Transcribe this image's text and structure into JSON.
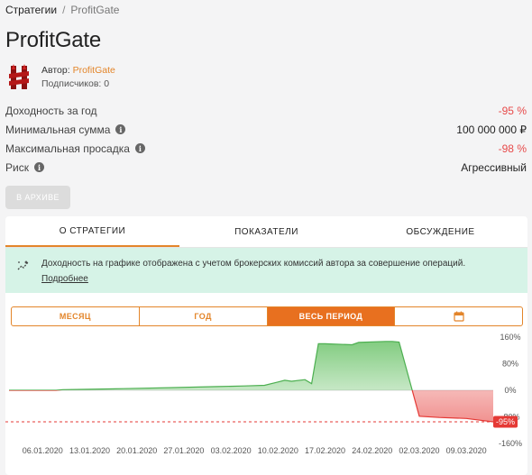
{
  "breadcrumb": {
    "root": "Стратегии",
    "separator": "/",
    "current": "ProfitGate"
  },
  "title": "ProfitGate",
  "author": {
    "label": "Автор:",
    "name": "ProfitGate",
    "subscribers": "Подписчиков: 0"
  },
  "stats": [
    {
      "label": "Доходность за год",
      "value": "-95 %",
      "info": false,
      "negative": true
    },
    {
      "label": "Минимальная сумма",
      "value": "100 000 000 ₽",
      "info": true,
      "negative": false
    },
    {
      "label": "Максимальная просадка",
      "value": "-98 %",
      "info": true,
      "negative": true
    },
    {
      "label": "Риск",
      "value": "Агрессивный",
      "info": true,
      "negative": false
    }
  ],
  "archive_button": "В АРХИВЕ",
  "tabs": [
    {
      "label": "О СТРАТЕГИИ",
      "active": true
    },
    {
      "label": "ПОКАЗАТЕЛИ",
      "active": false
    },
    {
      "label": "ОБСУЖДЕНИЕ",
      "active": false
    }
  ],
  "notice": {
    "text": "Доходность на графике отображена с учетом брокерских комиссий автора за совершение операций.",
    "link": "Подробнее"
  },
  "periods": [
    {
      "label": "МЕСЯЦ",
      "active": false
    },
    {
      "label": "ГОД",
      "active": false
    },
    {
      "label": "ВЕСЬ ПЕРИОД",
      "active": true
    },
    {
      "label": "",
      "icon": "calendar-icon",
      "active": false
    }
  ],
  "colors": {
    "accent": "#e3852a",
    "positive": "#5cb85c",
    "negative": "#e53935"
  },
  "chart_data": {
    "type": "area",
    "y_ticks": [
      "160%",
      "80%",
      "0%",
      "-80%",
      "-160%"
    ],
    "ylim": [
      -160,
      160
    ],
    "x_ticks": [
      "06.01.2020",
      "13.01.2020",
      "20.01.2020",
      "27.01.2020",
      "03.02.2020",
      "10.02.2020",
      "17.02.2020",
      "24.02.2020",
      "02.03.2020",
      "09.03.2020"
    ],
    "last_value_label": "-95%",
    "points": [
      [
        "2020-01-01",
        0
      ],
      [
        "2020-01-08",
        0
      ],
      [
        "2020-01-09",
        2
      ],
      [
        "2020-01-13",
        3
      ],
      [
        "2020-01-18",
        5
      ],
      [
        "2020-01-25",
        8
      ],
      [
        "2020-02-01",
        11
      ],
      [
        "2020-02-05",
        13
      ],
      [
        "2020-02-08",
        15
      ],
      [
        "2020-02-10",
        25
      ],
      [
        "2020-02-11",
        30
      ],
      [
        "2020-02-12",
        27
      ],
      [
        "2020-02-14",
        32
      ],
      [
        "2020-02-15",
        20
      ],
      [
        "2020-02-16",
        140
      ],
      [
        "2020-02-17",
        140
      ],
      [
        "2020-02-21",
        137
      ],
      [
        "2020-02-22",
        144
      ],
      [
        "2020-02-26",
        147
      ],
      [
        "2020-02-27",
        147
      ],
      [
        "2020-02-28",
        145
      ],
      [
        "2020-03-02",
        -78
      ],
      [
        "2020-03-05",
        -82
      ],
      [
        "2020-03-09",
        -85
      ],
      [
        "2020-03-11",
        -90
      ],
      [
        "2020-03-13",
        -95
      ]
    ]
  }
}
